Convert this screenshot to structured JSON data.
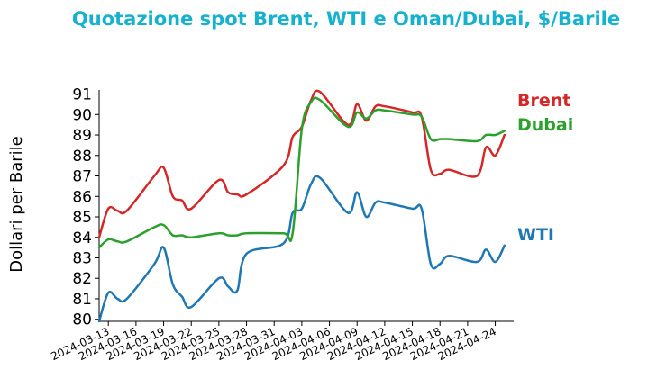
{
  "chart_data": {
    "type": "line",
    "title": "Quotazione spot Brent, WTI e Oman/Dubai, $/Barile",
    "ylabel": "Dollari per Barile",
    "xlabel": "",
    "ylim": [
      79.9,
      91.2
    ],
    "yticks": [
      80,
      81,
      82,
      83,
      84,
      85,
      86,
      87,
      88,
      89,
      90,
      91
    ],
    "xticks": [
      "2024-03-13",
      "2024-03-16",
      "2024-03-19",
      "2024-03-22",
      "2024-03-25",
      "2024-03-28",
      "2024-03-31",
      "2024-04-03",
      "2024-04-06",
      "2024-04-09",
      "2024-04-12",
      "2024-04-15",
      "2024-04-18",
      "2024-04-21",
      "2024-04-24"
    ],
    "grid": false,
    "legend": "direct labels at right end of lines",
    "x": [
      "2024-03-12",
      "2024-03-13",
      "2024-03-14",
      "2024-03-15",
      "2024-03-18",
      "2024-03-19",
      "2024-03-20",
      "2024-03-21",
      "2024-03-22",
      "2024-03-25",
      "2024-03-26",
      "2024-03-27",
      "2024-03-28",
      "2024-04-01",
      "2024-04-02",
      "2024-04-03",
      "2024-04-04",
      "2024-04-05",
      "2024-04-08",
      "2024-04-09",
      "2024-04-10",
      "2024-04-11",
      "2024-04-12",
      "2024-04-15",
      "2024-04-16",
      "2024-04-17",
      "2024-04-18",
      "2024-04-19",
      "2024-04-22",
      "2024-04-23",
      "2024-04-24",
      "2024-04-25"
    ],
    "series": [
      {
        "name": "Brent",
        "color": "#d62728",
        "values": [
          84.0,
          85.4,
          85.3,
          85.3,
          87.0,
          87.4,
          86.0,
          85.8,
          85.4,
          86.8,
          86.2,
          86.1,
          86.1,
          87.5,
          88.9,
          89.4,
          90.7,
          91.1,
          89.5,
          90.5,
          89.7,
          90.4,
          90.4,
          90.1,
          89.9,
          87.3,
          87.1,
          87.3,
          87.0,
          88.4,
          88.0,
          89.0
        ]
      },
      {
        "name": "WTI",
        "color": "#1f77b4",
        "values": [
          79.9,
          81.3,
          81.0,
          81.0,
          82.7,
          83.5,
          81.7,
          81.1,
          80.6,
          82.0,
          81.6,
          81.4,
          83.2,
          83.7,
          85.2,
          85.4,
          86.6,
          86.9,
          85.2,
          86.2,
          85.0,
          85.7,
          85.7,
          85.4,
          85.4,
          82.7,
          82.7,
          83.1,
          82.8,
          83.4,
          82.8,
          83.6
        ]
      },
      {
        "name": "Dubai",
        "color": "#2ca02c",
        "values": [
          83.5,
          83.9,
          83.8,
          83.8,
          84.5,
          84.6,
          84.1,
          84.1,
          84.0,
          84.2,
          84.1,
          84.1,
          84.2,
          84.2,
          84.2,
          89.3,
          90.6,
          90.7,
          89.4,
          90.1,
          89.8,
          90.2,
          90.2,
          90.0,
          89.9,
          88.8,
          88.8,
          88.8,
          88.7,
          89.0,
          89.0,
          89.2
        ]
      }
    ]
  }
}
